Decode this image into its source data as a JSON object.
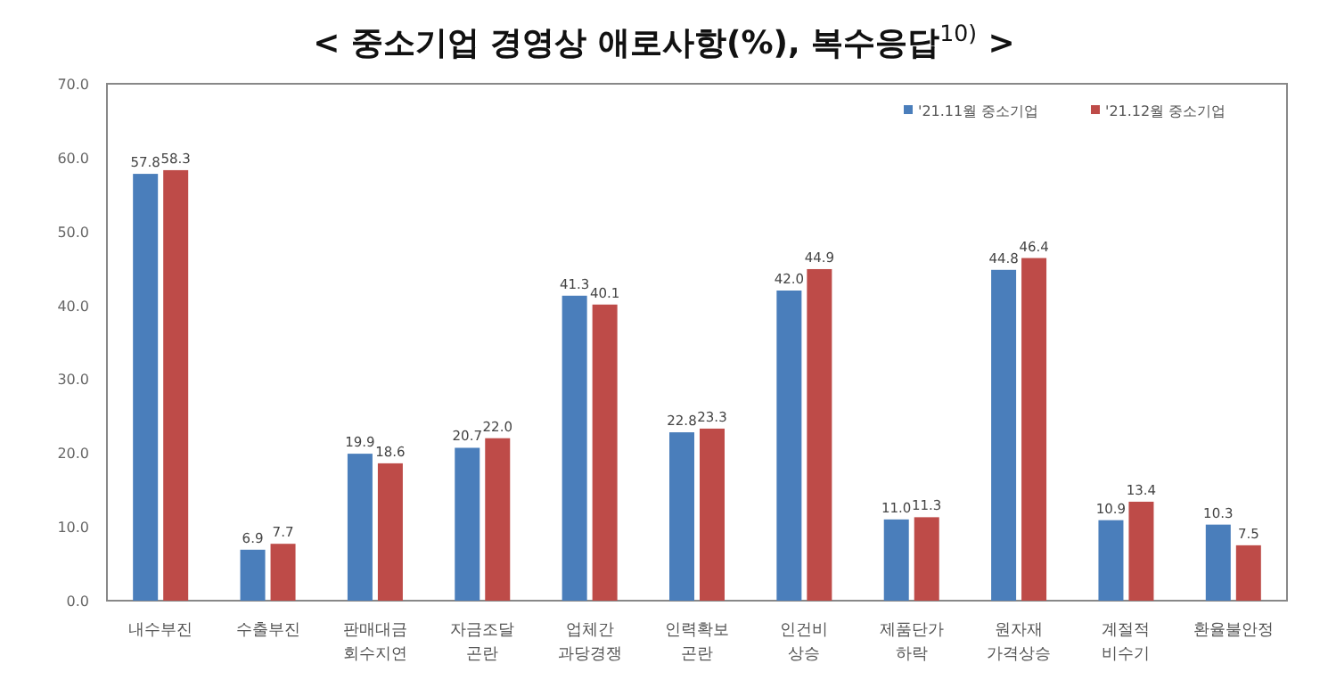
{
  "chart_data": {
    "type": "bar",
    "title": "< 중소기업 경영상 애로사항(%), 복수응답$^{10)}$ >",
    "categories": [
      "내수부진",
      "수출부진",
      "판매대금\n회수지연",
      "자금조달\n곤란",
      "업체간\n과당경쟁",
      "인력확보\n곤란",
      "인건비\n상승",
      "제품단가\n하락",
      "원자재\n가격상승",
      "계절적\n비수기",
      "환율불안정"
    ],
    "series": [
      {
        "name": "'21.11월 중소기업",
        "color": "#4a7ebb",
        "values": [
          57.8,
          6.9,
          19.9,
          20.7,
          41.3,
          22.8,
          42.0,
          11.0,
          44.8,
          10.9,
          10.3
        ],
        "value_labels": [
          "57.8",
          "6.9",
          "19.9",
          "20.7",
          "41.3",
          "22.8",
          "42.0",
          "11.0",
          "44.8",
          "10.9",
          "10.3"
        ]
      },
      {
        "name": "'21.12월 중소기업",
        "color": "#be4b48",
        "values": [
          58.3,
          7.7,
          18.6,
          22.0,
          40.1,
          23.3,
          44.9,
          11.3,
          46.4,
          13.4,
          7.5
        ],
        "value_labels": [
          "58.3",
          "7.7",
          "18.6",
          "22.0",
          "40.1",
          "23.3",
          "44.9",
          "11.3",
          "46.4",
          "13.4",
          "7.5"
        ]
      }
    ],
    "ylim": [
      0,
      70
    ],
    "yticks": [
      {
        "value": 0,
        "label": "0.0"
      },
      {
        "value": 10,
        "label": "10.0"
      },
      {
        "value": 20,
        "label": "20.0"
      },
      {
        "value": 30,
        "label": "30.0"
      },
      {
        "value": 40,
        "label": "40.0"
      },
      {
        "value": 50,
        "label": "50.0"
      },
      {
        "value": 60,
        "label": "60.0"
      },
      {
        "value": 70,
        "label": "70.0"
      }
    ],
    "grid": false,
    "legend": "top right"
  }
}
